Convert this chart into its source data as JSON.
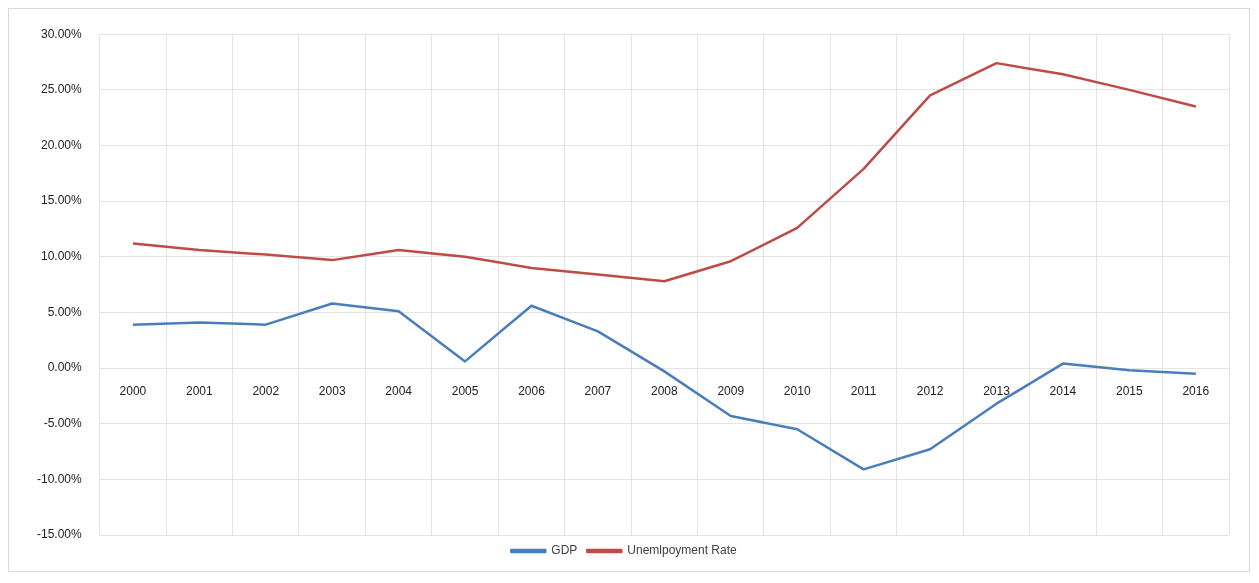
{
  "chart_data": {
    "type": "line",
    "categories": [
      "2000",
      "2001",
      "2002",
      "2003",
      "2004",
      "2005",
      "2006",
      "2007",
      "2008",
      "2009",
      "2010",
      "2011",
      "2012",
      "2013",
      "2014",
      "2015",
      "2016"
    ],
    "series": [
      {
        "name": "GDP",
        "color": "#4a7ebb",
        "values": [
          3.9,
          4.1,
          3.9,
          5.8,
          5.1,
          0.6,
          5.6,
          3.3,
          -0.3,
          -4.3,
          -5.5,
          -9.1,
          -7.3,
          -3.2,
          0.4,
          -0.2,
          -0.5
        ]
      },
      {
        "name": "Unemlpoyment Rate",
        "color": "#be4b48",
        "values": [
          11.2,
          10.6,
          10.2,
          9.7,
          10.6,
          10.0,
          9.0,
          8.4,
          7.8,
          9.6,
          12.6,
          17.9,
          24.5,
          27.4,
          26.4,
          25.0,
          23.5
        ]
      }
    ],
    "ylim": [
      -15,
      30
    ],
    "yticks": [
      {
        "value": -15,
        "label": "-15.00%"
      },
      {
        "value": -10,
        "label": "-10.00%"
      },
      {
        "value": -5,
        "label": "-5.00%"
      },
      {
        "value": 0,
        "label": "0.00%"
      },
      {
        "value": 5,
        "label": "5.00%"
      },
      {
        "value": 10,
        "label": "10.00%"
      },
      {
        "value": 15,
        "label": "15.00%"
      },
      {
        "value": 20,
        "label": "20.00%"
      },
      {
        "value": 25,
        "label": "25.00%"
      },
      {
        "value": 30,
        "label": "30.00%"
      }
    ],
    "grid": true,
    "legend": "bottom",
    "marker": "none",
    "line_style": "solid"
  }
}
